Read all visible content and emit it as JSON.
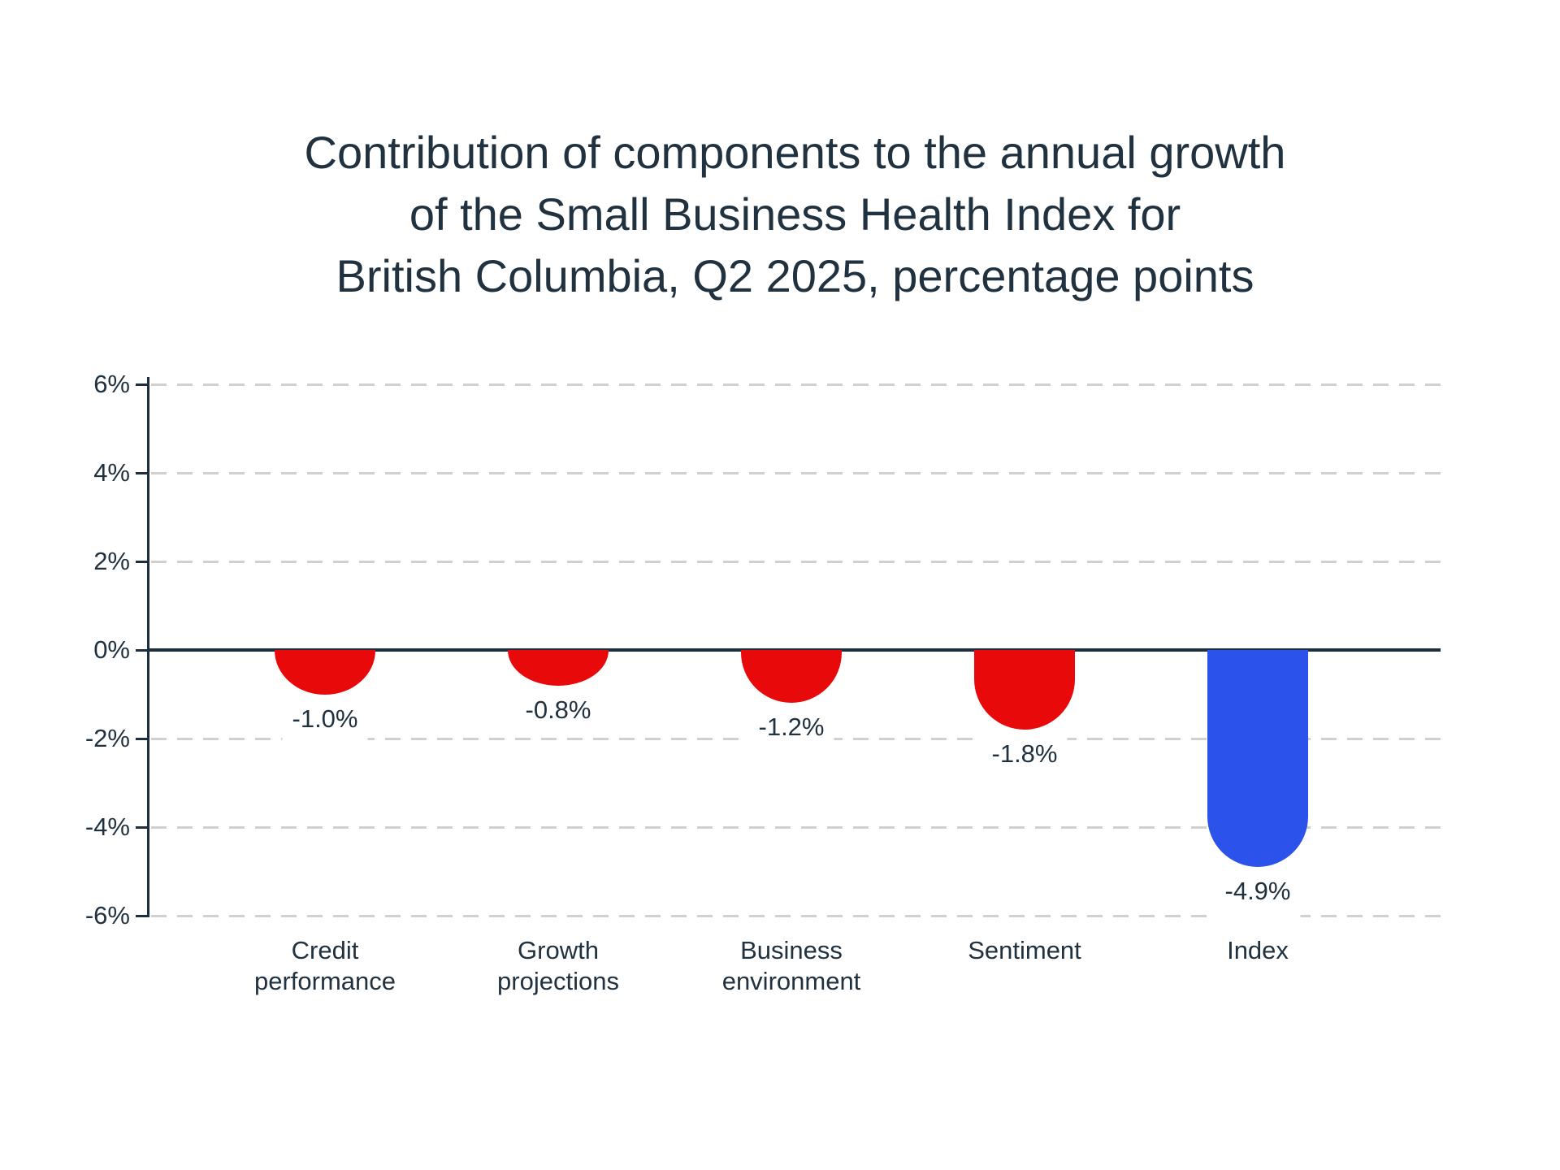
{
  "title": {
    "lines": [
      "Contribution of components to the annual growth",
      "of the Small Business Health Index for",
      "British Columbia, Q2 2025, percentage points"
    ]
  },
  "colors": {
    "component_bar": "#e8090b",
    "index_bar": "#2b52ea",
    "text": "#20313f",
    "axis": "#1d2e3e",
    "gridline": "#d2d0cd",
    "background": "#ffffff"
  },
  "chart_data": {
    "type": "bar",
    "title": "Contribution of components to the annual growth of the Small Business Health Index for British Columbia, Q2 2025, percentage points",
    "categories": [
      "Credit performance",
      "Growth projections",
      "Business environment",
      "Sentiment",
      "Index"
    ],
    "category_label_lines": [
      [
        "Credit",
        "performance"
      ],
      [
        "Growth",
        "projections"
      ],
      [
        "Business",
        "environment"
      ],
      [
        "Sentiment"
      ],
      [
        "Index"
      ]
    ],
    "values": [
      -1.0,
      -0.8,
      -1.2,
      -1.8,
      -4.9
    ],
    "data_labels": [
      "-1.0%",
      "-0.8%",
      "-1.2%",
      "-1.8%",
      "-4.9%"
    ],
    "bar_colors": [
      "#e8090b",
      "#e8090b",
      "#e8090b",
      "#e8090b",
      "#2b52ea"
    ],
    "unit": "percentage points",
    "xlabel": "",
    "ylabel": "",
    "ylim": [
      -6,
      6
    ],
    "y_ticks": [
      {
        "value": 6,
        "label": "6%"
      },
      {
        "value": 4,
        "label": "4%"
      },
      {
        "value": 2,
        "label": "2%"
      },
      {
        "value": 0,
        "label": "0%"
      },
      {
        "value": -2,
        "label": "-2%"
      },
      {
        "value": -4,
        "label": "-4%"
      },
      {
        "value": -6,
        "label": "-6%"
      }
    ],
    "grid": "horizontal-dashed",
    "legend": "none",
    "bar_style": "rounded-bottom"
  }
}
